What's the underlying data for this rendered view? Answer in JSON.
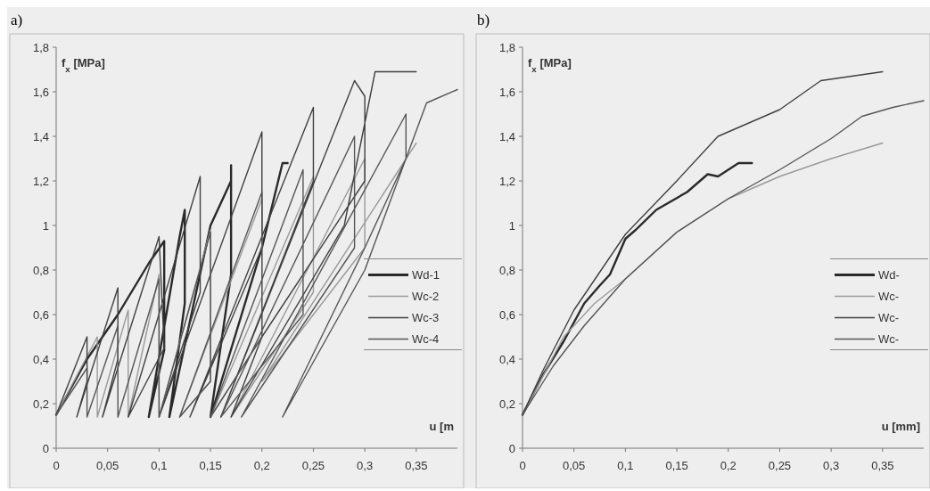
{
  "chart_data": [
    {
      "type": "line",
      "title": "a)",
      "xlabel": "u [m",
      "ylabel": "f$_{x}$ [MPa]",
      "legend": "right",
      "xlim": [
        0,
        0.39
      ],
      "ylim": [
        0,
        1.8
      ],
      "xticks": [
        {
          "value": 0,
          "label": "0"
        },
        {
          "value": 0.05,
          "label": "0,05"
        },
        {
          "value": 0.1,
          "label": "0,1"
        },
        {
          "value": 0.15,
          "label": "0,15"
        },
        {
          "value": 0.2,
          "label": "0,2"
        },
        {
          "value": 0.25,
          "label": "0,25"
        },
        {
          "value": 0.3,
          "label": "0,3"
        },
        {
          "value": 0.35,
          "label": "0,35"
        }
      ],
      "yticks": [
        {
          "value": 0,
          "label": "0"
        },
        {
          "value": 0.2,
          "label": "0,2"
        },
        {
          "value": 0.4,
          "label": "0,4"
        },
        {
          "value": 0.6,
          "label": "0,6"
        },
        {
          "value": 0.8,
          "label": "0,8"
        },
        {
          "value": 1,
          "label": "1"
        },
        {
          "value": 1.2,
          "label": "1,2"
        },
        {
          "value": 1.4,
          "label": "1,4"
        },
        {
          "value": 1.6,
          "label": "1,6"
        },
        {
          "value": 1.8,
          "label": "1,8"
        }
      ],
      "series": [
        {
          "name": "Wd-1",
          "color": "#2a2a2a",
          "x": [
            0,
            0.03,
            0.06,
            0.09,
            0.105,
            0.105,
            0.09,
            0.12,
            0.125,
            0.125,
            0.11,
            0.15,
            0.17,
            0.17,
            0.17,
            0.15,
            0.2,
            0.22,
            0.225
          ],
          "values": [
            0.15,
            0.4,
            0.6,
            0.83,
            0.93,
            0.44,
            0.14,
            0.95,
            1.07,
            0.65,
            0.14,
            1.0,
            1.2,
            1.27,
            0.78,
            0.14,
            0.9,
            1.28,
            1.28
          ]
        },
        {
          "name": "Wc-2",
          "color": "#9a9a9a",
          "x": [
            0,
            0.04,
            0.04,
            0.07,
            0.07,
            0.1,
            0.1,
            0.15,
            0.15,
            0.12,
            0.2,
            0.2,
            0.15,
            0.25,
            0.25,
            0.17,
            0.3,
            0.3,
            0.2,
            0.35
          ],
          "values": [
            0.15,
            0.5,
            0.14,
            0.62,
            0.14,
            0.78,
            0.14,
            0.98,
            0.3,
            0.14,
            1.12,
            0.5,
            0.14,
            1.22,
            0.7,
            0.14,
            1.3,
            0.9,
            0.3,
            1.37
          ]
        },
        {
          "name": "Wc-3",
          "color": "#404040",
          "x": [
            0,
            0.03,
            0.03,
            0.02,
            0.06,
            0.06,
            0.045,
            0.1,
            0.105,
            0.07,
            0.14,
            0.14,
            0.1,
            0.2,
            0.2,
            0.13,
            0.25,
            0.25,
            0.16,
            0.29,
            0.3,
            0.3,
            0.2,
            0.17,
            0.28,
            0.31,
            0.35
          ],
          "values": [
            0.15,
            0.5,
            0.3,
            0.14,
            0.72,
            0.4,
            0.14,
            0.95,
            0.45,
            0.14,
            1.22,
            0.7,
            0.14,
            1.42,
            0.9,
            0.14,
            1.53,
            1.2,
            0.14,
            1.65,
            1.58,
            1.2,
            0.5,
            0.14,
            1.0,
            1.69,
            1.69
          ]
        },
        {
          "name": "Wc-4",
          "color": "#555555",
          "x": [
            0,
            0.03,
            0.03,
            0.06,
            0.06,
            0.1,
            0.1,
            0.15,
            0.15,
            0.12,
            0.2,
            0.2,
            0.15,
            0.24,
            0.24,
            0.16,
            0.29,
            0.29,
            0.18,
            0.34,
            0.34,
            0.3,
            0.22,
            0.3,
            0.36,
            0.39
          ],
          "values": [
            0.15,
            0.36,
            0.14,
            0.55,
            0.14,
            0.76,
            0.14,
            0.97,
            0.3,
            0.14,
            1.15,
            0.5,
            0.14,
            1.25,
            0.6,
            0.14,
            1.4,
            0.9,
            0.14,
            1.5,
            1.3,
            0.9,
            0.14,
            0.8,
            1.55,
            1.61
          ]
        }
      ]
    },
    {
      "type": "line",
      "title": "b)",
      "xlabel": "u [mm]",
      "ylabel": "f$_{x}$ [MPa]",
      "legend": "right",
      "xlim": [
        0,
        0.39
      ],
      "ylim": [
        0,
        1.8
      ],
      "xticks": [
        {
          "value": 0,
          "label": "0"
        },
        {
          "value": 0.05,
          "label": "0,05"
        },
        {
          "value": 0.1,
          "label": "0,1"
        },
        {
          "value": 0.15,
          "label": "0,15"
        },
        {
          "value": 0.2,
          "label": "0,2"
        },
        {
          "value": 0.25,
          "label": "0,25"
        },
        {
          "value": 0.3,
          "label": "0,3"
        },
        {
          "value": 0.35,
          "label": "0,35"
        }
      ],
      "yticks": [
        {
          "value": 0,
          "label": "0"
        },
        {
          "value": 0.2,
          "label": "0,2"
        },
        {
          "value": 0.4,
          "label": "0,4"
        },
        {
          "value": 0.6,
          "label": "0,6"
        },
        {
          "value": 0.8,
          "label": "0,8"
        },
        {
          "value": 1,
          "label": "1"
        },
        {
          "value": 1.2,
          "label": "1,2"
        },
        {
          "value": 1.4,
          "label": "1,4"
        },
        {
          "value": 1.6,
          "label": "1,6"
        },
        {
          "value": 1.8,
          "label": "1,8"
        }
      ],
      "series": [
        {
          "name": "Wd-",
          "color": "#2a2a2a",
          "x": [
            0,
            0.02,
            0.04,
            0.06,
            0.075,
            0.085,
            0.1,
            0.11,
            0.13,
            0.16,
            0.18,
            0.19,
            0.21,
            0.223
          ],
          "values": [
            0.15,
            0.33,
            0.48,
            0.65,
            0.73,
            0.78,
            0.94,
            0.98,
            1.07,
            1.15,
            1.23,
            1.22,
            1.28,
            1.28
          ]
        },
        {
          "name": "Wc-",
          "color": "#9a9a9a",
          "x": [
            0,
            0.04,
            0.07,
            0.1,
            0.15,
            0.2,
            0.25,
            0.3,
            0.35
          ],
          "values": [
            0.15,
            0.5,
            0.65,
            0.76,
            0.97,
            1.12,
            1.22,
            1.3,
            1.37
          ]
        },
        {
          "name": "Wc-",
          "color": "#404040",
          "x": [
            0,
            0.02,
            0.05,
            0.1,
            0.15,
            0.19,
            0.25,
            0.29,
            0.32,
            0.35
          ],
          "values": [
            0.15,
            0.35,
            0.62,
            0.96,
            1.2,
            1.4,
            1.52,
            1.65,
            1.67,
            1.69
          ]
        },
        {
          "name": "Wc-",
          "color": "#555555",
          "x": [
            0,
            0.03,
            0.06,
            0.1,
            0.15,
            0.2,
            0.25,
            0.3,
            0.33,
            0.36,
            0.39
          ],
          "values": [
            0.15,
            0.37,
            0.55,
            0.76,
            0.97,
            1.12,
            1.25,
            1.39,
            1.49,
            1.53,
            1.56
          ]
        }
      ]
    }
  ]
}
